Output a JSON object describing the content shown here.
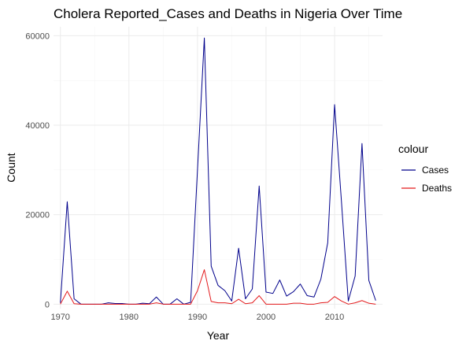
{
  "chart_data": {
    "type": "line",
    "title": "Cholera Reported_Cases and Deaths in Nigeria Over Time",
    "xlabel": "Year",
    "ylabel": "Count",
    "xlim": [
      1969,
      2017
    ],
    "ylim": [
      -1000,
      62000
    ],
    "x_ticks": [
      1970,
      1980,
      1990,
      2000,
      2010
    ],
    "y_ticks": [
      0,
      20000,
      40000,
      60000
    ],
    "y_tick_labels": [
      "0",
      "20000",
      "40000",
      "60000"
    ],
    "grid": true,
    "legend": {
      "title": "colour",
      "placement": "right"
    },
    "series": [
      {
        "name": "Cases",
        "color": "#00008b",
        "points": [
          [
            1970,
            300
          ],
          [
            1971,
            22900
          ],
          [
            1972,
            1200
          ],
          [
            1973,
            0
          ],
          [
            1974,
            0
          ],
          [
            1975,
            0
          ],
          [
            1976,
            0
          ],
          [
            1977,
            300
          ],
          [
            1978,
            150
          ],
          [
            1979,
            150
          ],
          [
            1980,
            0
          ],
          [
            1981,
            0
          ],
          [
            1982,
            200
          ],
          [
            1983,
            100
          ],
          [
            1984,
            1600
          ],
          [
            1985,
            0
          ],
          [
            1986,
            0
          ],
          [
            1987,
            1200
          ],
          [
            1988,
            0
          ],
          [
            1989,
            400
          ],
          [
            1990,
            30000
          ],
          [
            1991,
            59500
          ],
          [
            1992,
            8500
          ],
          [
            1993,
            4200
          ],
          [
            1994,
            3000
          ],
          [
            1995,
            700
          ],
          [
            1996,
            12500
          ],
          [
            1997,
            1200
          ],
          [
            1998,
            3400
          ],
          [
            1999,
            26400
          ],
          [
            2000,
            2700
          ],
          [
            2001,
            2400
          ],
          [
            2002,
            5400
          ],
          [
            2003,
            1800
          ],
          [
            2004,
            2800
          ],
          [
            2005,
            4500
          ],
          [
            2006,
            1900
          ],
          [
            2007,
            1600
          ],
          [
            2008,
            5600
          ],
          [
            2009,
            13700
          ],
          [
            2010,
            44600
          ],
          [
            2011,
            23000
          ],
          [
            2012,
            700
          ],
          [
            2013,
            6300
          ],
          [
            2014,
            35900
          ],
          [
            2015,
            5300
          ],
          [
            2016,
            800
          ]
        ]
      },
      {
        "name": "Deaths",
        "color": "#e31a1c",
        "points": [
          [
            1970,
            0
          ],
          [
            1971,
            2900
          ],
          [
            1972,
            100
          ],
          [
            1973,
            0
          ],
          [
            1974,
            0
          ],
          [
            1975,
            0
          ],
          [
            1976,
            0
          ],
          [
            1977,
            0
          ],
          [
            1978,
            0
          ],
          [
            1979,
            0
          ],
          [
            1980,
            0
          ],
          [
            1981,
            0
          ],
          [
            1982,
            0
          ],
          [
            1983,
            0
          ],
          [
            1984,
            300
          ],
          [
            1985,
            0
          ],
          [
            1986,
            0
          ],
          [
            1987,
            0
          ],
          [
            1988,
            0
          ],
          [
            1989,
            0
          ],
          [
            1990,
            3000
          ],
          [
            1991,
            7700
          ],
          [
            1992,
            600
          ],
          [
            1993,
            300
          ],
          [
            1994,
            300
          ],
          [
            1995,
            100
          ],
          [
            1996,
            1100
          ],
          [
            1997,
            100
          ],
          [
            1998,
            300
          ],
          [
            1999,
            1900
          ],
          [
            2000,
            0
          ],
          [
            2001,
            0
          ],
          [
            2002,
            0
          ],
          [
            2003,
            0
          ],
          [
            2004,
            200
          ],
          [
            2005,
            200
          ],
          [
            2006,
            0
          ],
          [
            2007,
            0
          ],
          [
            2008,
            300
          ],
          [
            2009,
            400
          ],
          [
            2010,
            1700
          ],
          [
            2011,
            700
          ],
          [
            2012,
            0
          ],
          [
            2013,
            300
          ],
          [
            2014,
            800
          ],
          [
            2015,
            200
          ],
          [
            2016,
            0
          ]
        ]
      }
    ]
  }
}
